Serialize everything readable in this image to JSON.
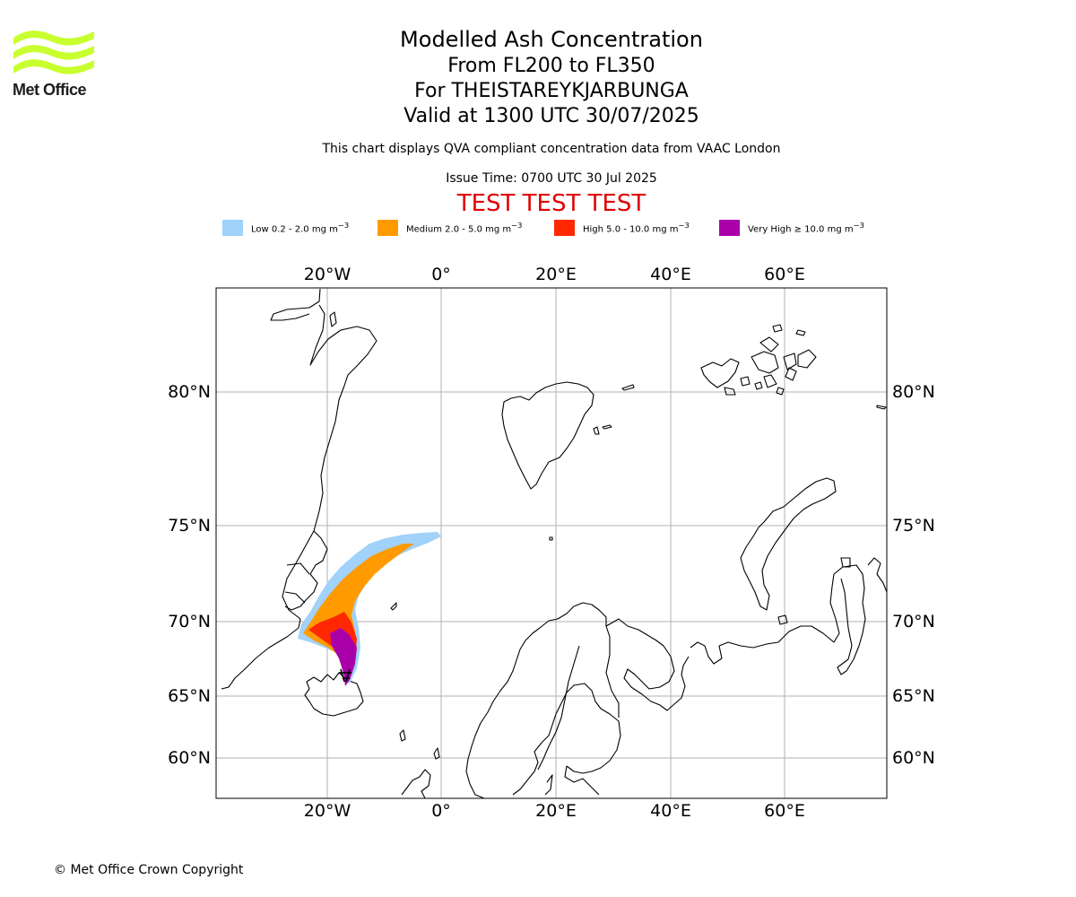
{
  "logo": {
    "text": "Met Office",
    "accent_color": "#c8ff2e"
  },
  "header": {
    "title": "Modelled Ash Concentration",
    "level_range": "From FL200 to FL350",
    "volcano_line": "For THEISTAREYKJARBUNGA",
    "valid_time": "Valid at 1300 UTC 30/07/2025",
    "disclaimer": "This chart displays QVA compliant concentration data from VAAC London",
    "issue_time": "Issue Time: 0700 UTC 30 Jul 2025",
    "test_banner": "TEST TEST TEST"
  },
  "legend": [
    {
      "name": "Low",
      "label": "Low 0.2 - 2.0 mg m",
      "unit_exp": "−3",
      "color": "#a0d2fa"
    },
    {
      "name": "Medium",
      "label": "Medium 2.0 - 5.0 mg m",
      "unit_exp": "−3",
      "color": "#ff9b00"
    },
    {
      "name": "High",
      "label": "High 5.0 - 10.0 mg m",
      "unit_exp": "−3",
      "color": "#ff2800"
    },
    {
      "name": "Very High",
      "label": "Very High  ≥  10.0 mg m",
      "unit_exp": "−3",
      "color": "#aa00aa"
    }
  ],
  "map": {
    "lon_ticks": [
      "20°W",
      "0°",
      "20°E",
      "40°E",
      "60°E"
    ],
    "lat_ticks": [
      "80°N",
      "75°N",
      "70°N",
      "65°N",
      "60°N"
    ],
    "gridline_color": "#b0b0b0"
  },
  "footer": {
    "copyright": "© Met Office Crown Copyright"
  }
}
